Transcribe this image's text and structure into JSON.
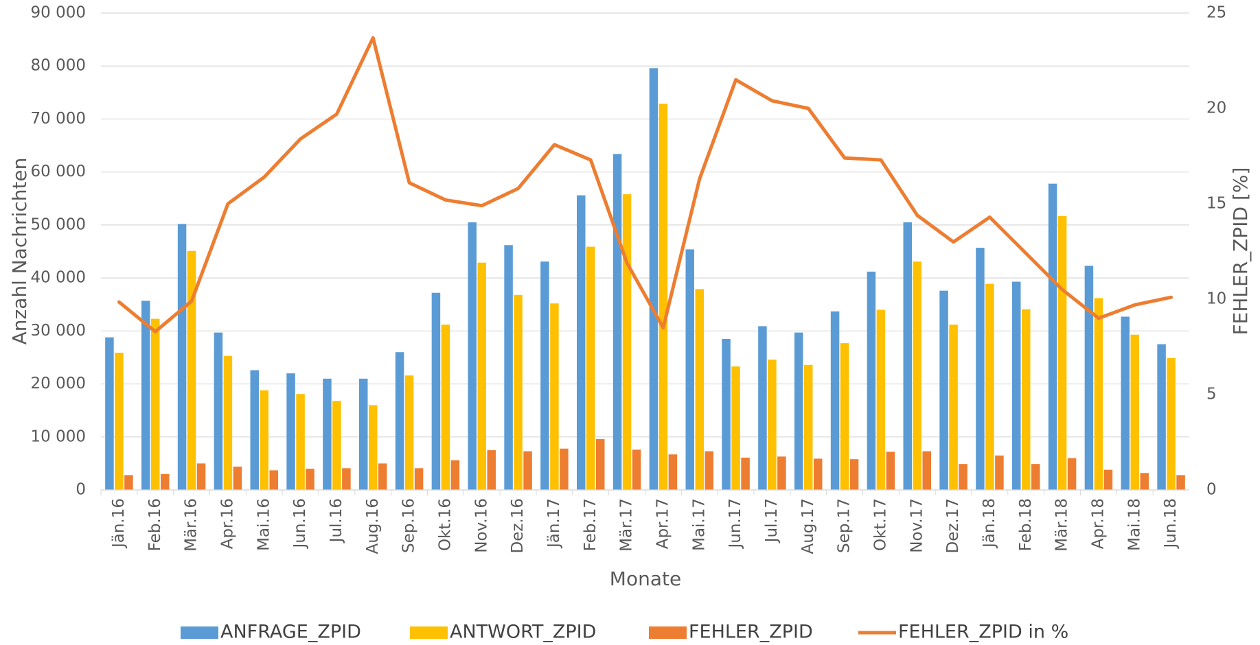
{
  "chart_data": {
    "type": "bar",
    "x_label": "Monate",
    "y_label": "Anzahl Nachrichten",
    "y2_label": "FEHLER_ZPID [%]",
    "categories": [
      "Jän.16",
      "Feb.16",
      "Mär.16",
      "Apr.16",
      "Mai.16",
      "Jun.16",
      "Jul.16",
      "Aug.16",
      "Sep.16",
      "Okt.16",
      "Nov.16",
      "Dez.16",
      "Jän.17",
      "Feb.17",
      "Mär.17",
      "Apr.17",
      "Mai.17",
      "Jun.17",
      "Jul.17",
      "Aug.17",
      "Sep.17",
      "Okt.17",
      "Nov.17",
      "Dez.17",
      "Jän.18",
      "Feb.18",
      "Mär.18",
      "Apr.18",
      "Mai.18",
      "Jun.18"
    ],
    "series": [
      {
        "name": "ANFRAGE_ZPID",
        "type": "bar",
        "color": "#5b9bd5",
        "values": [
          28800,
          35700,
          50200,
          29700,
          22600,
          22000,
          21000,
          21000,
          26000,
          37200,
          50500,
          46200,
          43100,
          55600,
          63400,
          79600,
          45400,
          28500,
          30900,
          29700,
          33700,
          41200,
          50500,
          37600,
          45700,
          39300,
          57800,
          42300,
          32700,
          27500
        ]
      },
      {
        "name": "ANTWORT_ZPID",
        "type": "bar",
        "color": "#ffc000",
        "values": [
          25900,
          32300,
          45100,
          25300,
          18800,
          18100,
          16800,
          16000,
          21600,
          31200,
          42900,
          36800,
          35200,
          45900,
          55800,
          72900,
          37900,
          23300,
          24600,
          23600,
          27700,
          34000,
          43100,
          31200,
          38900,
          34100,
          51700,
          36200,
          29300,
          24900
        ]
      },
      {
        "name": "FEHLER_ZPID",
        "type": "bar",
        "color": "#ed7d31",
        "values": [
          2800,
          3000,
          5000,
          4400,
          3700,
          4000,
          4100,
          5000,
          4100,
          5600,
          7500,
          7300,
          7800,
          9600,
          7600,
          6700,
          7300,
          6100,
          6300,
          5900,
          5800,
          7200,
          7300,
          4900,
          6500,
          4900,
          6000,
          3800,
          3200,
          2800
        ]
      },
      {
        "name": "FEHLER_ZPID in %",
        "type": "line",
        "axis": "y2",
        "color": "#ed7d31",
        "values": [
          9.85,
          8.3,
          9.9,
          15.0,
          16.4,
          18.4,
          19.7,
          23.7,
          16.1,
          15.2,
          14.9,
          15.8,
          18.1,
          17.3,
          11.9,
          8.5,
          16.3,
          21.5,
          20.4,
          20.0,
          17.4,
          17.3,
          14.4,
          13.0,
          14.3,
          12.4,
          10.5,
          9.0,
          9.7,
          10.1
        ]
      }
    ],
    "ylim": [
      0,
      90000
    ],
    "yticks": [
      {
        "value": 0,
        "label": "0"
      },
      {
        "value": 10000,
        "label": "10 000"
      },
      {
        "value": 20000,
        "label": "20 000"
      },
      {
        "value": 30000,
        "label": "30 000"
      },
      {
        "value": 40000,
        "label": "40 000"
      },
      {
        "value": 50000,
        "label": "50 000"
      },
      {
        "value": 60000,
        "label": "60 000"
      },
      {
        "value": 70000,
        "label": "70 000"
      },
      {
        "value": 80000,
        "label": "80 000"
      },
      {
        "value": 90000,
        "label": "90 000"
      }
    ],
    "y2lim": [
      0,
      25
    ],
    "y2ticks": [
      0,
      5,
      10,
      15,
      20,
      25
    ],
    "grid": true,
    "legend": "bottom"
  }
}
